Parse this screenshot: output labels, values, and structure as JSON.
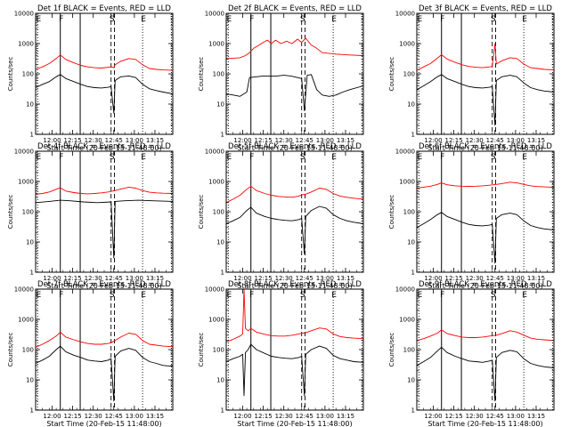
{
  "chart_data": {
    "type": "line",
    "yscale": "log",
    "ylim": [
      1,
      10000
    ],
    "xlim_minutes_after_start": [
      0,
      100
    ],
    "start_time": "20-Feb-15 11:48:00",
    "xtick_labels": [
      "12:00",
      "12:15",
      "12:30",
      "12:45",
      "13:00",
      "13:15"
    ],
    "xtick_minutes": [
      12,
      27,
      42,
      57,
      72,
      87
    ],
    "ytick_labels": [
      "1",
      "10",
      "100",
      "1000",
      "10000"
    ],
    "ytick_values": [
      1,
      10,
      100,
      1000,
      10000
    ],
    "xlabel": "Start Time (20-Feb-15 11:48:00)",
    "ylabel": "Counts/sec",
    "colors": {
      "events": "#000000",
      "lld": "#ff0000"
    },
    "event_markers": [
      {
        "label": "E",
        "minute": 1.5,
        "style": "dotted"
      },
      {
        "label": "F",
        "minute": 18,
        "style": "solid"
      },
      {
        "label": "",
        "minute": 32.5,
        "style": "solid"
      },
      {
        "label": "S",
        "minute": 55,
        "style": "dashed"
      },
      {
        "label": "",
        "minute": 57.5,
        "style": "dashed"
      },
      {
        "label": "E",
        "minute": 78,
        "style": "dotted"
      },
      {
        "label": "",
        "minute": 99,
        "style": "dotted"
      }
    ],
    "panels": [
      {
        "title": "Det 1f BLACK = Events, RED = LLD",
        "series": [
          {
            "name": "Events",
            "x": [
              0,
              5,
              10,
              15,
              18,
              22,
              28,
              33,
              38,
              43,
              48,
              53,
              55,
              57,
              58,
              62,
              68,
              73,
              78,
              83,
              88,
              93,
              100
            ],
            "y": [
              35,
              45,
              55,
              80,
              95,
              70,
              55,
              45,
              38,
              35,
              34,
              36,
              38,
              5,
              60,
              80,
              85,
              75,
              45,
              32,
              28,
              25,
              22
            ]
          },
          {
            "name": "LLD",
            "x": [
              0,
              5,
              10,
              15,
              18,
              22,
              28,
              33,
              38,
              43,
              48,
              53,
              55,
              57,
              58,
              62,
              68,
              73,
              78,
              83,
              88,
              93,
              100
            ],
            "y": [
              140,
              170,
              220,
              320,
              420,
              300,
              230,
              190,
              170,
              160,
              155,
              165,
              170,
              160,
              200,
              260,
              320,
              300,
              200,
              150,
              140,
              135,
              130
            ]
          }
        ]
      },
      {
        "title": "Det 2f BLACK = Events, RED = LLD",
        "series": [
          {
            "name": "Events",
            "x": [
              0,
              5,
              10,
              13,
              15,
              17,
              22,
              27,
              32,
              37,
              42,
              47,
              52,
              55,
              57,
              59,
              62,
              66,
              70,
              75,
              80,
              85,
              90,
              100
            ],
            "y": [
              22,
              20,
              18,
              22,
              25,
              75,
              80,
              85,
              85,
              85,
              90,
              85,
              75,
              70,
              6,
              90,
              95,
              30,
              20,
              18,
              20,
              25,
              30,
              40
            ]
          },
          {
            "name": "LLD",
            "x": [
              0,
              5,
              10,
              14,
              17,
              20,
              24,
              27,
              30,
              33,
              36,
              40,
              44,
              48,
              52,
              55,
              58,
              62,
              66,
              70,
              80,
              90,
              100
            ],
            "y": [
              320,
              330,
              340,
              400,
              500,
              700,
              900,
              1100,
              1300,
              1000,
              1300,
              1000,
              1200,
              1000,
              1400,
              1100,
              1500,
              900,
              700,
              500,
              450,
              420,
              400
            ]
          }
        ]
      },
      {
        "title": "Det 3f BLACK = Events, RED = LLD",
        "series": [
          {
            "name": "Events",
            "x": [
              0,
              5,
              10,
              15,
              18,
              22,
              28,
              33,
              38,
              43,
              48,
              53,
              55,
              57,
              58,
              62,
              68,
              73,
              78,
              83,
              88,
              93,
              100
            ],
            "y": [
              30,
              40,
              55,
              80,
              95,
              70,
              55,
              45,
              38,
              35,
              34,
              36,
              38,
              2,
              60,
              80,
              90,
              80,
              50,
              35,
              30,
              27,
              25
            ]
          },
          {
            "name": "LLD",
            "x": [
              0,
              5,
              10,
              15,
              18,
              22,
              28,
              33,
              38,
              43,
              48,
              53,
              55,
              57,
              58,
              62,
              68,
              73,
              78,
              83,
              88,
              93,
              100
            ],
            "y": [
              130,
              170,
              220,
              330,
              430,
              310,
              240,
              200,
              175,
              165,
              160,
              170,
              175,
              1000,
              210,
              270,
              340,
              320,
              210,
              160,
              150,
              140,
              135
            ]
          }
        ]
      },
      {
        "title": "Det 4f BLACK = Events, RED = LLD",
        "series": [
          {
            "name": "Events",
            "x": [
              0,
              10,
              18,
              25,
              35,
              45,
              55,
              57,
              58,
              65,
              75,
              85,
              100
            ],
            "y": [
              200,
              220,
              240,
              230,
              210,
              200,
              210,
              3,
              220,
              230,
              240,
              230,
              220
            ]
          },
          {
            "name": "LLD",
            "x": [
              0,
              5,
              10,
              15,
              18,
              22,
              28,
              33,
              38,
              43,
              48,
              53,
              58,
              62,
              68,
              73,
              78,
              83,
              88,
              93,
              100
            ],
            "y": [
              380,
              400,
              450,
              550,
              620,
              480,
              430,
              400,
              390,
              400,
              420,
              450,
              500,
              560,
              650,
              600,
              500,
              440,
              420,
              410,
              400
            ]
          }
        ]
      },
      {
        "title": "Det 5f BLACK = Events, RED = LLD",
        "series": [
          {
            "name": "Events",
            "x": [
              0,
              5,
              10,
              15,
              18,
              22,
              28,
              33,
              38,
              43,
              48,
              53,
              55,
              57,
              58,
              62,
              68,
              73,
              78,
              83,
              88,
              93,
              100
            ],
            "y": [
              40,
              50,
              65,
              110,
              140,
              90,
              70,
              60,
              55,
              52,
              50,
              55,
              60,
              4,
              70,
              110,
              150,
              130,
              80,
              60,
              50,
              45,
              40
            ]
          },
          {
            "name": "LLD",
            "x": [
              0,
              5,
              10,
              15,
              18,
              22,
              28,
              33,
              38,
              43,
              48,
              53,
              55,
              58,
              62,
              68,
              73,
              78,
              83,
              88,
              93,
              100
            ],
            "y": [
              200,
              260,
              350,
              550,
              700,
              500,
              400,
              350,
              320,
              310,
              300,
              330,
              360,
              380,
              450,
              600,
              550,
              400,
              330,
              300,
              280,
              260
            ]
          }
        ]
      },
      {
        "title": "Det 6f BLACK = Events, RED = LLD",
        "series": [
          {
            "name": "Events",
            "x": [
              0,
              5,
              10,
              15,
              18,
              22,
              28,
              33,
              38,
              43,
              48,
              53,
              55,
              57,
              58,
              62,
              68,
              73,
              78,
              83,
              88,
              93,
              100
            ],
            "y": [
              30,
              40,
              55,
              80,
              95,
              70,
              55,
              45,
              38,
              35,
              34,
              36,
              38,
              2,
              60,
              80,
              90,
              80,
              50,
              35,
              30,
              27,
              25
            ]
          },
          {
            "name": "LLD",
            "x": [
              0,
              5,
              10,
              15,
              18,
              22,
              28,
              33,
              38,
              43,
              48,
              53,
              58,
              62,
              68,
              73,
              78,
              83,
              88,
              93,
              100
            ],
            "y": [
              600,
              650,
              700,
              800,
              900,
              780,
              720,
              700,
              690,
              700,
              720,
              750,
              800,
              850,
              950,
              900,
              800,
              720,
              680,
              660,
              640
            ]
          }
        ]
      },
      {
        "title": "Det 7f BLACK = Events, RED = LLD",
        "series": [
          {
            "name": "Events",
            "x": [
              0,
              5,
              10,
              15,
              18,
              22,
              28,
              33,
              38,
              43,
              48,
              53,
              55,
              57,
              58,
              62,
              68,
              73,
              78,
              83,
              88,
              93,
              100
            ],
            "y": [
              35,
              45,
              60,
              100,
              130,
              85,
              65,
              55,
              45,
              42,
              40,
              45,
              50,
              2,
              60,
              90,
              110,
              95,
              55,
              40,
              35,
              30,
              28
            ]
          },
          {
            "name": "LLD",
            "x": [
              0,
              5,
              10,
              15,
              18,
              22,
              28,
              33,
              38,
              43,
              48,
              53,
              55,
              58,
              62,
              68,
              73,
              78,
              83,
              88,
              93,
              100
            ],
            "y": [
              120,
              150,
              200,
              280,
              380,
              260,
              210,
              180,
              160,
              150,
              150,
              160,
              170,
              200,
              260,
              350,
              320,
              200,
              150,
              140,
              130,
              125
            ]
          }
        ]
      },
      {
        "title": "Det 8f BLACK = Events, RED = LLD",
        "series": [
          {
            "name": "Events",
            "x": [
              0,
              5,
              10,
              12,
              13,
              14,
              16,
              18,
              22,
              28,
              33,
              38,
              43,
              48,
              53,
              55,
              57,
              58,
              62,
              68,
              73,
              78,
              83,
              88,
              93,
              100
            ],
            "y": [
              40,
              50,
              60,
              70,
              3,
              80,
              100,
              150,
              100,
              75,
              60,
              55,
              52,
              50,
              55,
              60,
              3,
              70,
              100,
              130,
              110,
              65,
              50,
              45,
              40,
              38
            ]
          },
          {
            "name": "LLD",
            "x": [
              0,
              5,
              10,
              12,
              13,
              14,
              16,
              18,
              22,
              28,
              33,
              38,
              43,
              48,
              53,
              55,
              58,
              62,
              68,
              73,
              78,
              83,
              88,
              93,
              100
            ],
            "y": [
              180,
              220,
              280,
              330,
              10000,
              500,
              420,
              500,
              380,
              320,
              290,
              280,
              280,
              300,
              330,
              350,
              360,
              420,
              520,
              480,
              330,
              270,
              250,
              240,
              230
            ]
          }
        ]
      },
      {
        "title": "Det 9f BLACK = Events, RED = LLD",
        "series": [
          {
            "name": "Events",
            "x": [
              0,
              5,
              10,
              15,
              18,
              22,
              28,
              33,
              38,
              43,
              48,
              53,
              55,
              57,
              58,
              62,
              68,
              73,
              78,
              83,
              88,
              93,
              100
            ],
            "y": [
              30,
              40,
              55,
              90,
              120,
              80,
              60,
              50,
              42,
              40,
              38,
              42,
              45,
              2,
              55,
              80,
              95,
              85,
              50,
              35,
              30,
              27,
              25
            ]
          },
          {
            "name": "LLD",
            "x": [
              0,
              5,
              10,
              15,
              18,
              22,
              28,
              33,
              38,
              43,
              48,
              53,
              58,
              62,
              68,
              73,
              78,
              83,
              88,
              93,
              100
            ],
            "y": [
              200,
              230,
              280,
              350,
              450,
              340,
              290,
              260,
              250,
              250,
              260,
              280,
              300,
              340,
              420,
              380,
              300,
              240,
              220,
              210,
              200
            ]
          }
        ]
      }
    ]
  }
}
